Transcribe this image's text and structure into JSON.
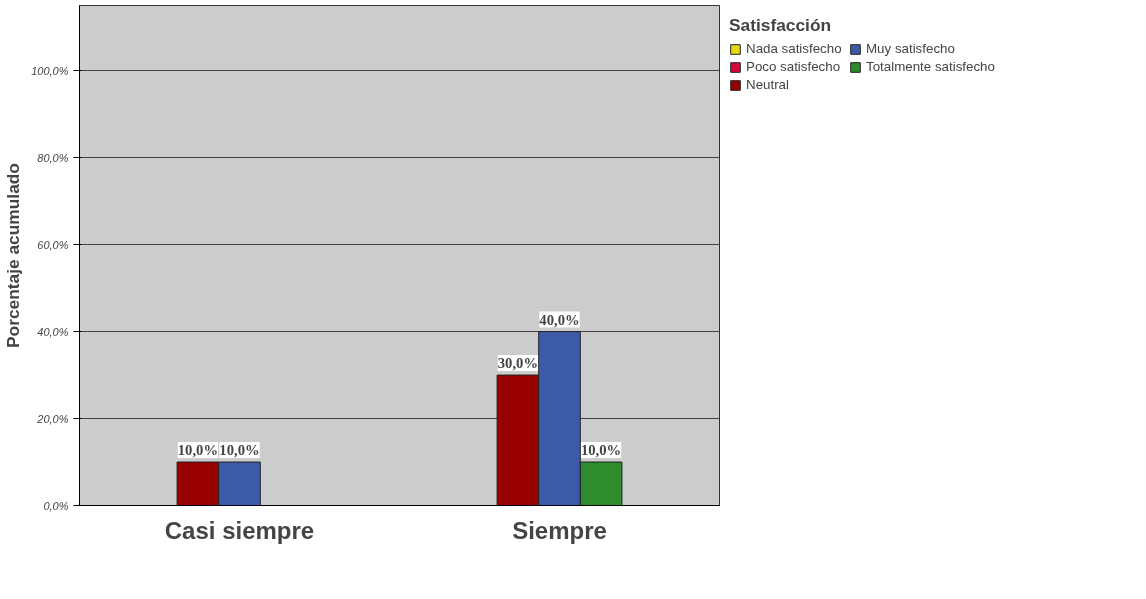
{
  "chart_data": {
    "type": "bar",
    "ylabel": "Porcentaje acumulado",
    "legend_title": "Satisfacción",
    "categories": [
      "Casi siempre",
      "Siempre"
    ],
    "series": [
      {
        "name": "Nada satisfecho",
        "color": "#e6d80f",
        "values": [
          null,
          null
        ]
      },
      {
        "name": "Poco satisfecho",
        "color": "#d6093d",
        "values": [
          null,
          null
        ]
      },
      {
        "name": "Neutral",
        "color": "#990000",
        "values": [
          10,
          30
        ],
        "value_labels": [
          "10,0%",
          "30,0%"
        ]
      },
      {
        "name": "Muy satisfecho",
        "color": "#3c5aa8",
        "values": [
          10,
          40
        ],
        "value_labels": [
          "10,0%",
          "40,0%"
        ]
      },
      {
        "name": "Totalmente satisfecho",
        "color": "#2e8b2e",
        "values": [
          null,
          10
        ],
        "value_labels": [
          null,
          "10,0%"
        ]
      }
    ],
    "ylim": [
      0,
      115
    ],
    "yticks": [
      {
        "value": 0,
        "label": "0,0%"
      },
      {
        "value": 20,
        "label": "20,0%"
      },
      {
        "value": 40,
        "label": "40,0%"
      },
      {
        "value": 60,
        "label": "60,0%"
      },
      {
        "value": 80,
        "label": "80,0%"
      },
      {
        "value": 100,
        "label": "100,0%"
      }
    ],
    "grid": "y",
    "legend": "top right"
  }
}
